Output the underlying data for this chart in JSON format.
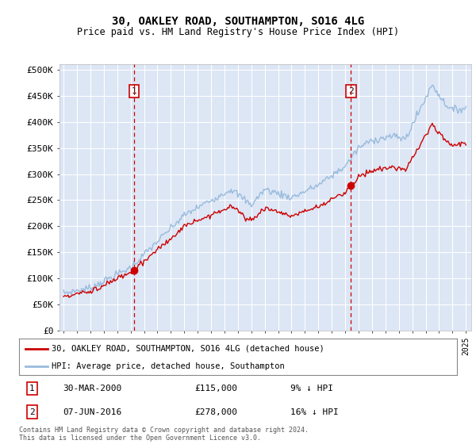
{
  "title": "30, OAKLEY ROAD, SOUTHAMPTON, SO16 4LG",
  "subtitle": "Price paid vs. HM Land Registry's House Price Index (HPI)",
  "footer": "Contains HM Land Registry data © Crown copyright and database right 2024.\nThis data is licensed under the Open Government Licence v3.0.",
  "legend_line1": "30, OAKLEY ROAD, SOUTHAMPTON, SO16 4LG (detached house)",
  "legend_line2": "HPI: Average price, detached house, Southampton",
  "annotation1_label": "1",
  "annotation1_date": "30-MAR-2000",
  "annotation1_price": "£115,000",
  "annotation1_hpi": "9% ↓ HPI",
  "annotation2_label": "2",
  "annotation2_date": "07-JUN-2016",
  "annotation2_price": "£278,000",
  "annotation2_hpi": "16% ↓ HPI",
  "yticks": [
    0,
    50000,
    100000,
    150000,
    200000,
    250000,
    300000,
    350000,
    400000,
    450000,
    500000
  ],
  "ylim": [
    0,
    510000
  ],
  "xlim_left": 1994.7,
  "xlim_right": 2025.4,
  "background_color": "#dce6f5",
  "red_line_color": "#cc0000",
  "blue_line_color": "#99bbdd",
  "vline_color": "#cc0000",
  "grid_color": "#ffffff",
  "sale1_year": 2000.247,
  "sale1_price": 115000,
  "sale2_year": 2016.435,
  "sale2_price": 278000
}
